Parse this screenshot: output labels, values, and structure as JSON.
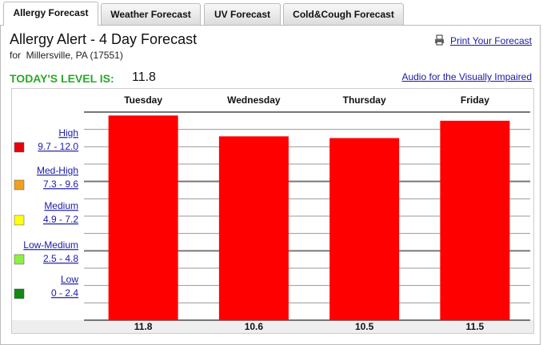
{
  "tabs": [
    "Allergy Forecast",
    "Weather Forecast",
    "UV Forecast",
    "Cold&Cough Forecast"
  ],
  "header": {
    "title": "Allergy Alert - 4 Day Forecast",
    "location": "for  Millersville, PA (17551)",
    "print_link": "Print Your Forecast",
    "level_label": "TODAY'S LEVEL IS:",
    "level_value": 11.8,
    "audio_link": "Audio for the Visually Impaired"
  },
  "legend": [
    {
      "name": "High",
      "range": "9.7 - 12.0",
      "color": "#e8000c"
    },
    {
      "name": "Med-High",
      "range": "7.3 - 9.6",
      "color": "#f0a020"
    },
    {
      "name": "Medium",
      "range": "4.9 - 7.2",
      "color": "#ffff10"
    },
    {
      "name": "Low-Medium",
      "range": "2.5 - 4.8",
      "color": "#8cf040"
    },
    {
      "name": "Low",
      "range": "0 - 2.4",
      "color": "#108a10"
    }
  ],
  "chart_data": {
    "type": "bar",
    "categories": [
      "Tuesday",
      "Wednesday",
      "Thursday",
      "Friday"
    ],
    "values": [
      11.8,
      10.6,
      10.5,
      11.5
    ],
    "color": "#ff0000",
    "ylim": [
      0,
      12
    ],
    "grid": true
  }
}
